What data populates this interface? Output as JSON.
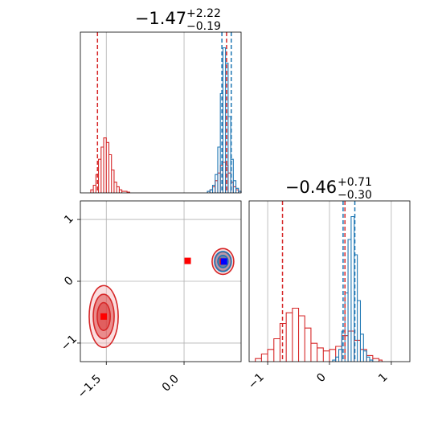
{
  "colors": {
    "red": "#d62728",
    "blue": "#1f77b4",
    "grid": "#b0b0b0",
    "marker_red": "#ff0000",
    "marker_blue": "#0000ff"
  },
  "panels": {
    "top_title": {
      "main": "−1.47",
      "sup": "+2.22",
      "sub": "−0.19"
    },
    "right_title": {
      "main": "−0.46",
      "sup": "+0.71",
      "sub": "−0.30"
    }
  },
  "chart_data": [
    {
      "type": "histogram",
      "panel": "marginal-x",
      "xlim": [
        -2.0,
        1.1
      ],
      "grid": true,
      "red_quantile_lines": [
        -1.67,
        0.82
      ],
      "blue_quantile_lines": [
        0.73,
        0.91
      ],
      "red_hist": {
        "bins_x": [
          -1.8,
          -1.75,
          -1.7,
          -1.65,
          -1.6,
          -1.55,
          -1.5,
          -1.45,
          -1.4,
          -1.35,
          -1.3,
          -1.25,
          -1.2,
          -1.1,
          0.45,
          0.5,
          0.55,
          0.6,
          0.65,
          0.7,
          0.75,
          0.8,
          0.85,
          0.9,
          0.95,
          1.0,
          1.05
        ],
        "heights": [
          0.02,
          0.05,
          0.12,
          0.22,
          0.3,
          0.36,
          0.33,
          0.25,
          0.15,
          0.07,
          0.04,
          0.02,
          0.01,
          0.005,
          0.01,
          0.02,
          0.04,
          0.08,
          0.13,
          0.18,
          0.2,
          0.18,
          0.13,
          0.07,
          0.04,
          0.02,
          0.01
        ]
      },
      "blue_hist": {
        "bins_x": [
          0.45,
          0.5,
          0.55,
          0.6,
          0.65,
          0.7,
          0.75,
          0.8,
          0.85,
          0.9,
          0.95,
          1.0,
          1.05
        ],
        "heights": [
          0.01,
          0.02,
          0.05,
          0.12,
          0.3,
          0.65,
          0.95,
          0.85,
          0.5,
          0.22,
          0.08,
          0.03,
          0.01
        ]
      }
    },
    {
      "type": "contour",
      "panel": "joint",
      "xlim": [
        -2.0,
        1.1
      ],
      "ylim": [
        -1.3,
        1.3
      ],
      "x_ticks": [
        "−1.5",
        "0.0"
      ],
      "x_tick_values": [
        -1.5,
        0.0
      ],
      "y_ticks": [
        "1",
        "0",
        "−1"
      ],
      "y_tick_values": [
        1,
        0,
        -1
      ],
      "grid": true,
      "red_modes": [
        {
          "cx": -1.55,
          "cy": -0.57,
          "sx": 0.28,
          "sy": 0.5
        },
        {
          "cx": 0.75,
          "cy": 0.32,
          "sx": 0.22,
          "sy": 0.22
        }
      ],
      "blue_mode": {
        "cx": 0.75,
        "cy": 0.32,
        "sx": 0.18,
        "sy": 0.18
      },
      "markers": [
        {
          "x": -1.55,
          "y": -0.57,
          "color": "red"
        },
        {
          "x": 0.07,
          "y": 0.33,
          "color": "red"
        },
        {
          "x": 0.75,
          "y": 0.32,
          "color": "red"
        },
        {
          "x": 0.77,
          "y": 0.32,
          "color": "blue"
        }
      ]
    },
    {
      "type": "histogram",
      "panel": "marginal-y",
      "xlim": [
        -1.3,
        1.3
      ],
      "x_ticks": [
        "−1",
        "0",
        "1"
      ],
      "x_tick_values": [
        -1,
        0,
        1
      ],
      "grid": true,
      "red_quantile_lines": [
        -0.76,
        0.25
      ],
      "blue_quantile_lines": [
        0.22,
        0.41
      ],
      "red_hist": {
        "bins_x": [
          -1.2,
          -1.1,
          -1.0,
          -0.9,
          -0.8,
          -0.7,
          -0.6,
          -0.5,
          -0.4,
          -0.3,
          -0.2,
          -0.1,
          0.0,
          0.1,
          0.2,
          0.3,
          0.4,
          0.5,
          0.6,
          0.7,
          0.8
        ],
        "heights": [
          0.02,
          0.05,
          0.08,
          0.15,
          0.25,
          0.32,
          0.35,
          0.3,
          0.22,
          0.12,
          0.09,
          0.07,
          0.08,
          0.1,
          0.17,
          0.2,
          0.14,
          0.08,
          0.04,
          0.02,
          0.01
        ]
      },
      "blue_hist": {
        "bins_x": [
          0.05,
          0.1,
          0.15,
          0.2,
          0.25,
          0.3,
          0.35,
          0.4,
          0.45,
          0.5,
          0.55,
          0.6,
          0.65
        ],
        "heights": [
          0.01,
          0.03,
          0.08,
          0.2,
          0.45,
          0.8,
          0.95,
          0.7,
          0.4,
          0.18,
          0.07,
          0.03,
          0.01
        ]
      }
    }
  ]
}
